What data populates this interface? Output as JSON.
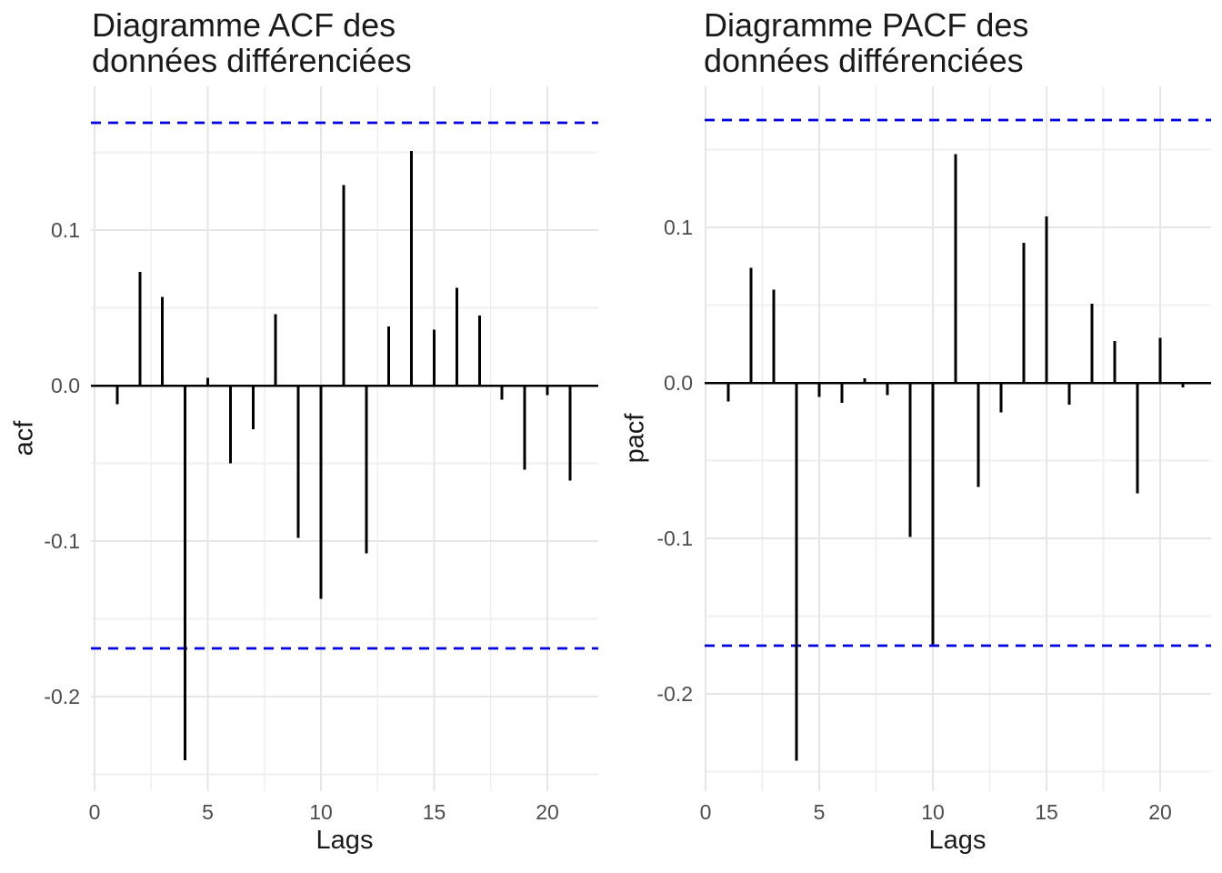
{
  "chart_data": [
    {
      "type": "bar",
      "style": "acf-stick-plot",
      "title": "Diagramme ACF des données différenciées",
      "title_lines": [
        "Diagramme ACF des",
        "données différenciées"
      ],
      "xlabel": "Lags",
      "ylabel": "acf",
      "x": [
        1,
        2,
        3,
        4,
        5,
        6,
        7,
        8,
        9,
        10,
        11,
        12,
        13,
        14,
        15,
        16,
        17,
        18,
        19,
        20,
        21
      ],
      "values": [
        -0.012,
        0.073,
        0.057,
        -0.241,
        0.005,
        -0.05,
        -0.028,
        0.046,
        -0.098,
        -0.137,
        0.129,
        -0.108,
        0.038,
        0.151,
        0.036,
        0.063,
        0.045,
        -0.009,
        -0.054,
        -0.006,
        -0.061
      ],
      "confidence_bounds": [
        0.169,
        -0.169
      ],
      "conf_line_style": "dashed",
      "conf_line_color": "#0000e6",
      "bar_color": "#000000",
      "zero_line_color": "#000000",
      "grid": true,
      "grid_color": "#e6e6e6",
      "legend": "none",
      "xlim": [
        0,
        22
      ],
      "ylim": [
        -0.26,
        0.19
      ],
      "x_ticks": [
        0,
        5,
        10,
        15,
        20
      ],
      "x_tick_labels": [
        "0",
        "5",
        "10",
        "15",
        "20"
      ],
      "y_ticks": [
        0.1,
        0.0,
        -0.1,
        -0.2
      ],
      "y_tick_labels": [
        "0.1",
        "0.0",
        "-0.1",
        "-0.2"
      ],
      "y_minor_ticks": [
        0.15,
        0.05,
        -0.05,
        -0.15,
        -0.25
      ],
      "x_minor_ticks": [
        2.5,
        7.5,
        12.5,
        17.5
      ]
    },
    {
      "type": "bar",
      "style": "acf-stick-plot",
      "title": "Diagramme PACF des données différenciées",
      "title_lines": [
        "Diagramme PACF des",
        "données différenciées"
      ],
      "xlabel": "Lags",
      "ylabel": "pacf",
      "x": [
        1,
        2,
        3,
        4,
        5,
        6,
        7,
        8,
        9,
        10,
        11,
        12,
        13,
        14,
        15,
        16,
        17,
        18,
        19,
        20,
        21
      ],
      "values": [
        -0.012,
        0.074,
        0.06,
        -0.243,
        -0.009,
        -0.013,
        0.003,
        -0.008,
        -0.099,
        -0.168,
        0.147,
        -0.067,
        -0.019,
        0.09,
        0.107,
        -0.014,
        0.051,
        0.027,
        -0.071,
        0.029,
        -0.003
      ],
      "confidence_bounds": [
        0.169,
        -0.169
      ],
      "conf_line_style": "dashed",
      "conf_line_color": "#0000e6",
      "bar_color": "#000000",
      "zero_line_color": "#000000",
      "grid": true,
      "grid_color": "#e6e6e6",
      "legend": "none",
      "xlim": [
        0,
        22
      ],
      "ylim": [
        -0.26,
        0.19
      ],
      "x_ticks": [
        0,
        5,
        10,
        15,
        20
      ],
      "x_tick_labels": [
        "0",
        "5",
        "10",
        "15",
        "20"
      ],
      "y_ticks": [
        0.1,
        0.0,
        -0.1,
        -0.2
      ],
      "y_tick_labels": [
        "0.1",
        "0.0",
        "-0.1",
        "-0.2"
      ],
      "y_minor_ticks": [
        0.15,
        0.05,
        -0.05,
        -0.15,
        -0.25
      ],
      "x_minor_ticks": [
        2.5,
        7.5,
        12.5,
        17.5
      ]
    }
  ]
}
